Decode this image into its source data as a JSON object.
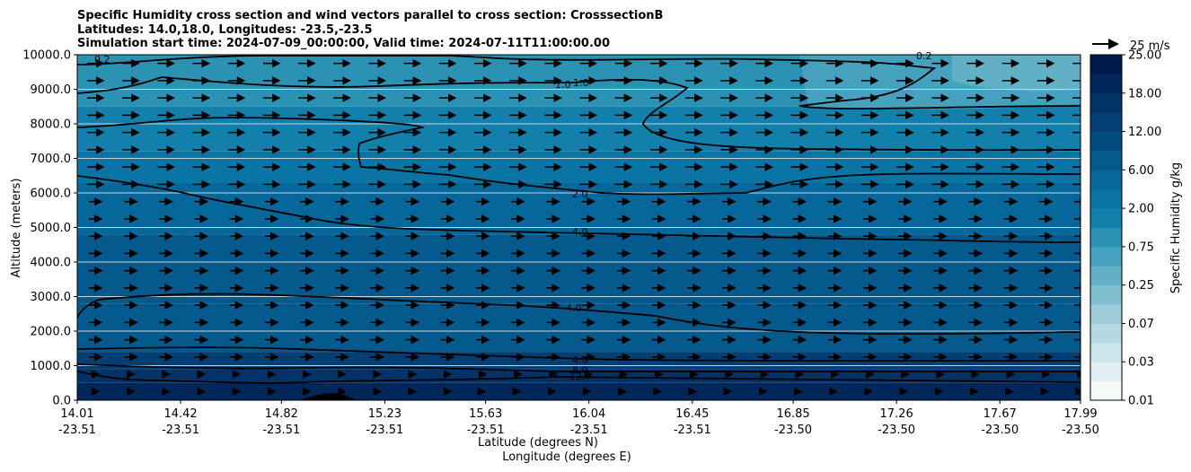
{
  "chart_data": {
    "type": "contour",
    "title_lines": [
      "Specific Humidity cross section and wind vectors parallel to cross section: CrosssectionB",
      "Latitudes: 14.0,18.0, Longitudes: -23.5,-23.5",
      "Simulation start time: 2024-07-09_00:00:00, Valid time: 2024-07-11T11:00:00.00"
    ],
    "ylabel": "Altitude (meters)",
    "xlabel_lines": [
      "Latitude (degrees N)",
      "Longitude (degrees E)"
    ],
    "ylim": [
      0,
      10000
    ],
    "y_ticks": [
      "0.0",
      "1000.0",
      "2000.0",
      "3000.0",
      "4000.0",
      "5000.0",
      "6000.0",
      "7000.0",
      "8000.0",
      "9000.0",
      "10000.0"
    ],
    "x_ticks": [
      {
        "lat": "14.01",
        "lon": "-23.51"
      },
      {
        "lat": "14.42",
        "lon": "-23.51"
      },
      {
        "lat": "14.82",
        "lon": "-23.51"
      },
      {
        "lat": "15.23",
        "lon": "-23.51"
      },
      {
        "lat": "15.63",
        "lon": "-23.51"
      },
      {
        "lat": "16.04",
        "lon": "-23.51"
      },
      {
        "lat": "16.45",
        "lon": "-23.51"
      },
      {
        "lat": "16.85",
        "lon": "-23.50"
      },
      {
        "lat": "17.26",
        "lon": "-23.50"
      },
      {
        "lat": "17.67",
        "lon": "-23.50"
      },
      {
        "lat": "17.99",
        "lon": "-23.50"
      }
    ],
    "colorbar": {
      "label": "Specific Humidity g/kg",
      "levels": [
        0.01,
        0.02,
        0.03,
        0.05,
        0.07,
        0.1,
        0.25,
        0.5,
        0.75,
        1.0,
        2.0,
        4.0,
        6.0,
        8.0,
        12.0,
        15.0,
        18.0,
        21.0,
        25.0
      ],
      "tick_labels": [
        "0.01",
        "0.03",
        "0.07",
        "0.25",
        "0.75",
        "2.00",
        "6.00",
        "12.00",
        "18.00",
        "25.00"
      ],
      "colors": [
        "#f4f9fa",
        "#e1eff2",
        "#cce5ea",
        "#b5d9e1",
        "#9ccdd8",
        "#80bfcf",
        "#62b0c6",
        "#45a1bd",
        "#2b92b4",
        "#137fab",
        "#0a74a5",
        "#06679b",
        "#045a8d",
        "#034c80",
        "#033f73",
        "#023266",
        "#012659",
        "#011a4c"
      ]
    },
    "wind_key": {
      "label": "25 m/s"
    },
    "contour_labels": [
      "0.2",
      "0.2",
      "1.0",
      "1.0",
      "2.0",
      "4.0",
      "4.0",
      "4.0",
      "8.0",
      "12.0"
    ]
  }
}
